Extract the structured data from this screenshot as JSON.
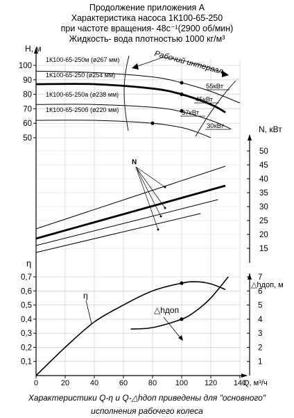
{
  "header": {
    "lines": [
      "Продолжение приложения А",
      "Характеристика насоса 1К100-65-250",
      "при частоте вращения- 48с⁻¹(2900 об/мин)",
      "Жидкость- вода плотностью 1000 кг/м³"
    ]
  },
  "caption": {
    "lines": [
      "Характеристики Q-η и Q-△hдоп приведены для \"основного\"",
      "исполнения рабочего колеса"
    ]
  },
  "chart_data": {
    "type": "line",
    "xlabel": "Q, м³/ч",
    "xticks": [
      0,
      20,
      40,
      60,
      80,
      100,
      120,
      140
    ],
    "xlim": [
      0,
      140
    ],
    "panels": {
      "head": {
        "ylabel": "Н, м",
        "ylim": [
          50,
          100
        ],
        "yticks": [
          50,
          60,
          70,
          80,
          90,
          100
        ],
        "series": [
          {
            "name": "1К100-65-250м (ø267 мм)",
            "x": [
              0,
              40,
              80,
              100,
              120,
              140
            ],
            "y": [
              96,
              95,
              92,
              88,
              82,
              74
            ],
            "bold": false
          },
          {
            "name": "1К100-65-250 (ø254 мм)",
            "x": [
              0,
              40,
              80,
              100,
              120,
              130
            ],
            "y": [
              87,
              87,
              84,
              80,
              73,
              67.5
            ],
            "bold": true
          },
          {
            "name": "1К100-65-250а (ø238 мм)",
            "x": [
              0,
              40,
              80,
              100,
              120,
              134
            ],
            "y": [
              73,
              73,
              71,
              68,
              62,
              56
            ],
            "bold": false
          },
          {
            "name": "1К100-65-250б (ø220 мм)",
            "x": [
              0,
              40,
              80,
              100,
              110,
              120
            ],
            "y": [
              62,
              62,
              60,
              57,
              54,
              50
            ],
            "bold": false
          }
        ],
        "markers": [
          {
            "x": 100,
            "y": 88
          },
          {
            "x": 100,
            "y": 80
          },
          {
            "x": 100,
            "y": 68.5
          },
          {
            "x": 80,
            "y": 60
          }
        ],
        "power_labels": [
          "55кВт",
          "45кВт",
          "37кВт",
          "30кВт"
        ],
        "working_interval_label": "Рабочий интервал"
      },
      "power": {
        "ylabel": "N, кВт",
        "ylim": [
          10,
          55
        ],
        "yticks": [
          15,
          20,
          25,
          30,
          35,
          40,
          45,
          50
        ],
        "series_label": "N",
        "series": [
          {
            "name": "250м",
            "x": [
              0,
              130
            ],
            "y": [
              22,
              44.5
            ],
            "bold": false
          },
          {
            "name": "250",
            "x": [
              0,
              130
            ],
            "y": [
              18.5,
              37.5
            ],
            "bold": true
          },
          {
            "name": "250а",
            "x": [
              0,
              125
            ],
            "y": [
              16,
              32.5
            ],
            "bold": false
          },
          {
            "name": "250б",
            "x": [
              0,
              113
            ],
            "y": [
              13.5,
              27.5
            ],
            "bold": false
          }
        ]
      },
      "efficiency": {
        "ylabel": "η",
        "ylim": [
          0,
          0.8
        ],
        "yticks": [
          0.1,
          0.2,
          0.3,
          0.4,
          0.5,
          0.6,
          0.7
        ],
        "ytick_labels": [
          "0,1",
          "0,2",
          "0,3",
          "0,4",
          "0,5",
          "0,6",
          "0,7"
        ],
        "series": [
          {
            "name": "η",
            "x": [
              0,
              20,
              40,
              60,
              80,
              100,
              110,
              120,
              130
            ],
            "y": [
              0,
              0.2,
              0.38,
              0.5,
              0.6,
              0.655,
              0.665,
              0.65,
              0.61
            ]
          }
        ],
        "markers": [
          {
            "x": 100,
            "y": 0.655
          }
        ]
      },
      "npsh": {
        "ylabel": "△hдоп, м",
        "ylim": [
          0,
          8
        ],
        "yticks": [
          1,
          2,
          3,
          4,
          5,
          6,
          7
        ],
        "series": [
          {
            "name": "△hдоп",
            "x": [
              65,
              80,
              100,
              110,
              120,
              132
            ],
            "y": [
              3.3,
              3.4,
              4.0,
              4.6,
              5.5,
              7.0
            ]
          }
        ],
        "markers": [
          {
            "x": 100,
            "y": 4.0
          }
        ]
      }
    }
  }
}
